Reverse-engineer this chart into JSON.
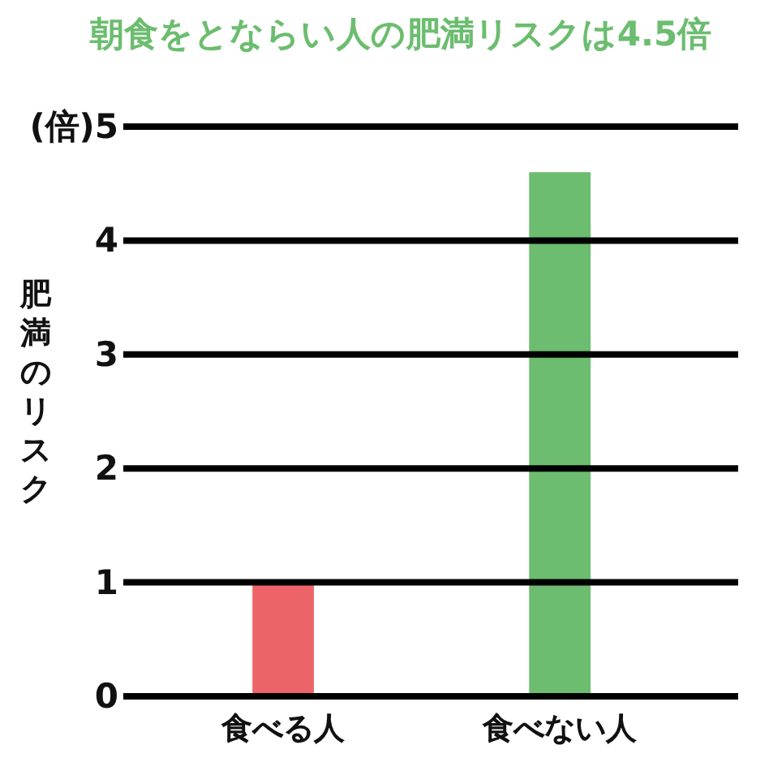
{
  "chart_data": {
    "type": "bar",
    "title": "朝食をとならい人の肥満リスクは4.5倍",
    "ylabel": "肥満のリスク",
    "categories": [
      "食べる人",
      "食べない人"
    ],
    "values": [
      1,
      4.6
    ],
    "colors": [
      "#ec6469",
      "#6cbd6f"
    ],
    "ylim": [
      0,
      5
    ],
    "yticks": [
      0,
      1,
      2,
      3,
      4,
      {
        "value": 5,
        "label": "(倍)5"
      }
    ],
    "grid": "y"
  }
}
